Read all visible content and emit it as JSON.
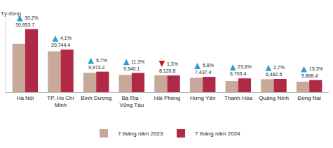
{
  "chart_data": {
    "type": "bar",
    "y_label": "Tỷ đồng",
    "categories": [
      "Hà Nội",
      "TP. Hồ Chí Minh",
      "Bình Dương",
      "Bà Rịa - Vũng Tàu",
      "Hải Phòng",
      "Hưng Yên",
      "Thanh Hóa",
      "Quảng Ninh",
      "Đồng Nai"
    ],
    "series": [
      {
        "name": "7 tháng năm 2023",
        "color": "#c8a898",
        "values": [
          23500,
          19900,
          9400,
          8400,
          8200,
          7000,
          5400,
          6300,
          5100
        ]
      },
      {
        "name": "7 tháng năm 2024",
        "color": "#b02a45",
        "values": [
          30653.7,
          20744.4,
          9973.2,
          9340.1,
          8120.8,
          7437.4,
          6703.4,
          6462.5,
          5868.4
        ],
        "value_labels": [
          "30,653.7",
          "20,744.4",
          "9,973.2",
          "9,340.1",
          "8,120.8",
          "7,437.4",
          "6,703.4",
          "6,462.5",
          "5,868.4"
        ],
        "change_values": [
          30.2,
          4.1,
          5.7,
          11.3,
          -1.3,
          5.8,
          23.6,
          2.7,
          15.3
        ],
        "change_labels": [
          "30,2%",
          "4,1%",
          "5,7%",
          "11,3%",
          "1,3%",
          "5,8%",
          "23,6%",
          "2,7%",
          "15,3%"
        ]
      }
    ],
    "ylim": [
      0,
      36000
    ],
    "data_labels": true,
    "tick_labels": "x",
    "legend": "bottom",
    "grid": false
  }
}
